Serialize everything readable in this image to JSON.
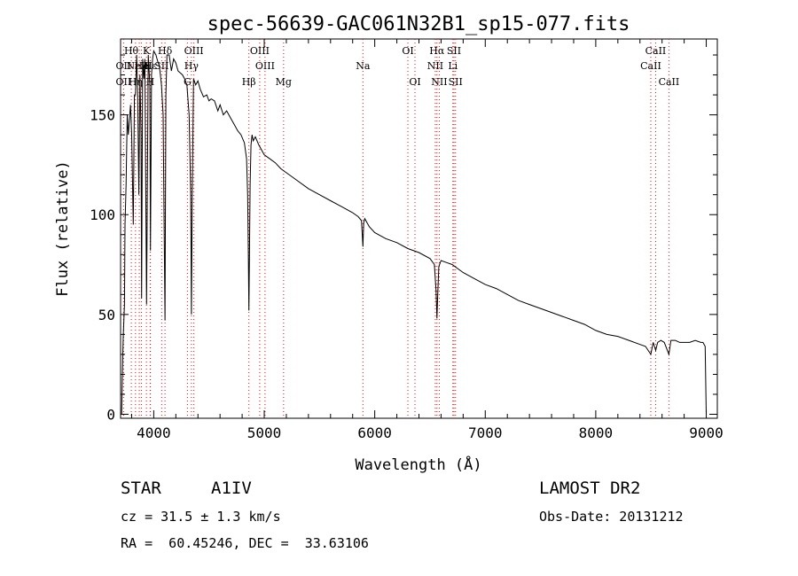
{
  "chart_data": {
    "type": "line",
    "title": "spec-56639-GAC061N32B1_sp15-077.fits",
    "xlabel": "Wavelength (Å)",
    "ylabel": "Flux (relative)",
    "xlim": [
      3700,
      9100
    ],
    "ylim": [
      -2,
      188
    ],
    "xticks": [
      4000,
      5000,
      6000,
      7000,
      8000,
      9000
    ],
    "yticks": [
      0,
      50,
      100,
      150
    ],
    "grid": false,
    "line_color": "#000000",
    "marker_color": "#ff0000",
    "series": [
      {
        "x": [
          3710,
          3720,
          3725,
          3735,
          3740,
          3750,
          3760,
          3770,
          3790,
          3800,
          3815,
          3825,
          3835,
          3845,
          3855,
          3865,
          3875,
          3885,
          3890,
          3900,
          3910,
          3920,
          3935,
          3950,
          3965,
          3970,
          3980,
          3990,
          4000,
          4010,
          4020,
          4030,
          4040,
          4050,
          4060,
          4070,
          4085,
          4095,
          4102,
          4110,
          4120,
          4140,
          4160,
          4180,
          4200,
          4220,
          4240,
          4260,
          4280,
          4300,
          4320,
          4335,
          4341,
          4348,
          4360,
          4380,
          4400,
          4420,
          4450,
          4480,
          4500,
          4520,
          4550,
          4580,
          4600,
          4630,
          4660,
          4700,
          4730,
          4760,
          4790,
          4820,
          4840,
          4850,
          4856,
          4861,
          4866,
          4872,
          4880,
          4890,
          4900,
          4920,
          4950,
          4980,
          5000,
          5050,
          5100,
          5150,
          5200,
          5250,
          5300,
          5400,
          5500,
          5600,
          5700,
          5800,
          5850,
          5880,
          5893,
          5900,
          5910,
          5950,
          6000,
          6100,
          6200,
          6300,
          6400,
          6500,
          6540,
          6555,
          6563,
          6570,
          6580,
          6600,
          6650,
          6700,
          6800,
          6900,
          7000,
          7100,
          7200,
          7300,
          7400,
          7500,
          7600,
          7700,
          7800,
          7900,
          8000,
          8100,
          8200,
          8300,
          8400,
          8450,
          8498,
          8520,
          8542,
          8560,
          8590,
          8620,
          8662,
          8680,
          8720,
          8760,
          8800,
          8850,
          8900,
          8950,
          8970,
          8990,
          9000
        ],
        "values": [
          0,
          30,
          40,
          55,
          95,
          115,
          150,
          140,
          155,
          140,
          95,
          160,
          160,
          180,
          160,
          110,
          170,
          140,
          58,
          178,
          168,
          178,
          55,
          180,
          165,
          82,
          170,
          178,
          182,
          181,
          180,
          178,
          176,
          175,
          170,
          165,
          150,
          90,
          47,
          160,
          180,
          180,
          172,
          178,
          176,
          172,
          171,
          170,
          168,
          165,
          150,
          110,
          50,
          110,
          168,
          165,
          167,
          163,
          159,
          160,
          157,
          158,
          157,
          152,
          155,
          150,
          152,
          148,
          145,
          142,
          140,
          136,
          128,
          110,
          80,
          52,
          78,
          115,
          135,
          140,
          137,
          139,
          135,
          132,
          130,
          128,
          126,
          123,
          121,
          119,
          117,
          113,
          110,
          107,
          104,
          101,
          99,
          97,
          84,
          96,
          98,
          94,
          91,
          88,
          86,
          83,
          81,
          78,
          75,
          62,
          48,
          60,
          74,
          77,
          76,
          75,
          71,
          68,
          65,
          63,
          60,
          57,
          55,
          53,
          51,
          49,
          47,
          45,
          42,
          40,
          39,
          37,
          35,
          34,
          30,
          36,
          32,
          36,
          37,
          36,
          30,
          37,
          37,
          36,
          36,
          36,
          37,
          36,
          36,
          34,
          0
        ]
      }
    ],
    "line_markers": [
      {
        "x": 3727,
        "label": "OII",
        "row": 1
      },
      {
        "x": 3727,
        "label": "OII",
        "row": 2
      },
      {
        "x": 3797,
        "label": "Hθ",
        "row": 0
      },
      {
        "x": 3835,
        "label": "Hη",
        "row": 2
      },
      {
        "x": 3869,
        "label": "NeIII",
        "row": 1
      },
      {
        "x": 3889,
        "label": "He",
        "row": 1
      },
      {
        "x": 3934,
        "label": "K",
        "row": 0
      },
      {
        "x": 3968,
        "label": "H",
        "row": 2
      },
      {
        "x": 3970,
        "label": "Hε",
        "row": 1
      },
      {
        "x": 4102,
        "label": "Hδ",
        "row": 0
      },
      {
        "x": 4072,
        "label": "SII",
        "row": 1
      },
      {
        "x": 4305,
        "label": "G",
        "row": 2
      },
      {
        "x": 4341,
        "label": "Hγ",
        "row": 1
      },
      {
        "x": 4363,
        "label": "OIII",
        "row": 0
      },
      {
        "x": 4861,
        "label": "Hβ",
        "row": 2
      },
      {
        "x": 4959,
        "label": "OIII",
        "row": 0
      },
      {
        "x": 5007,
        "label": "OIII",
        "row": 1
      },
      {
        "x": 5175,
        "label": "Mg",
        "row": 2
      },
      {
        "x": 5893,
        "label": "Na",
        "row": 1
      },
      {
        "x": 6300,
        "label": "OI",
        "row": 0
      },
      {
        "x": 6364,
        "label": "OI",
        "row": 2
      },
      {
        "x": 6548,
        "label": "NII",
        "row": 1
      },
      {
        "x": 6563,
        "label": "Hα",
        "row": 0
      },
      {
        "x": 6584,
        "label": "NII",
        "row": 2
      },
      {
        "x": 6707,
        "label": "Li",
        "row": 1
      },
      {
        "x": 6717,
        "label": "SII",
        "row": 0
      },
      {
        "x": 6731,
        "label": "SII",
        "row": 2
      },
      {
        "x": 8498,
        "label": "CaII",
        "row": 1
      },
      {
        "x": 8542,
        "label": "CaII",
        "row": 0
      },
      {
        "x": 8662,
        "label": "CaII",
        "row": 2
      }
    ]
  },
  "info": {
    "object_class": "STAR",
    "subclass": "A1IV",
    "survey": "LAMOST DR2",
    "cz": "cz = 31.5 ± 1.3 km/s",
    "obs_date": "Obs-Date: 20131212",
    "coords": "RA =  60.45246, DEC =  33.63106"
  }
}
